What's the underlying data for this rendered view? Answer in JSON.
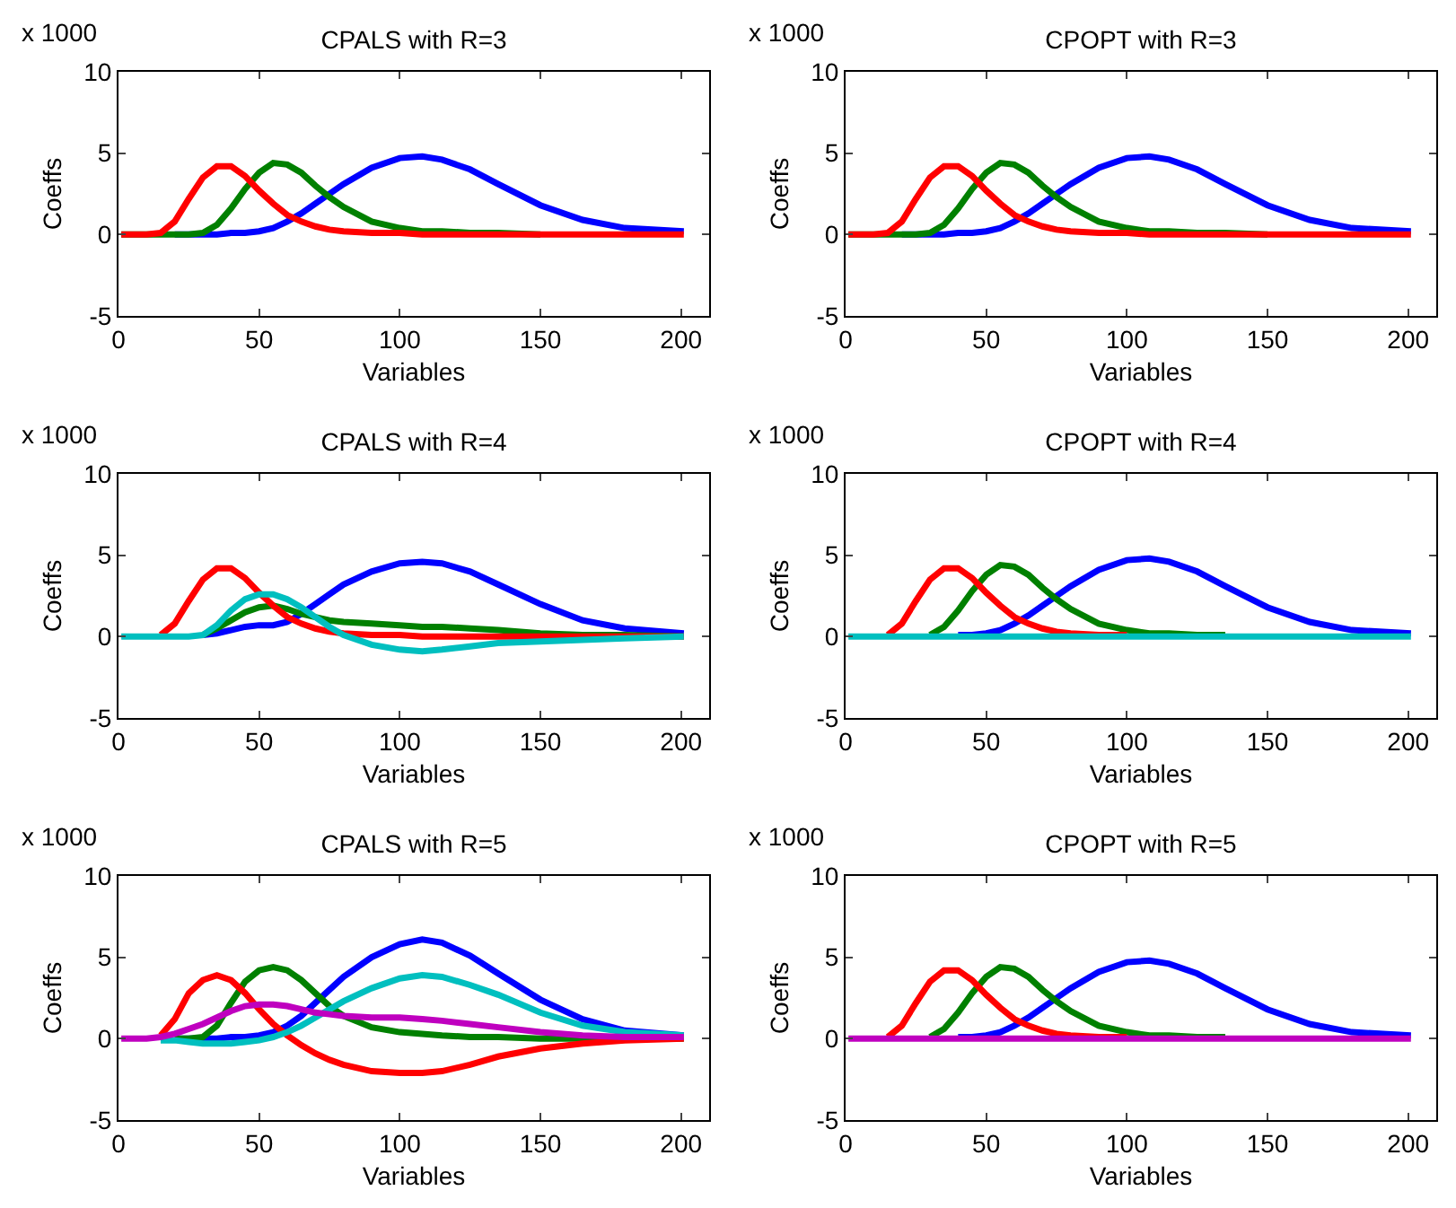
{
  "chart_data": [
    {
      "type": "line",
      "title": "CPALS with R=3",
      "xlabel": "Variables",
      "ylabel": "Coeffs",
      "annotations": [
        "x 1000"
      ],
      "x": [
        1,
        10,
        15,
        20,
        25,
        30,
        35,
        40,
        45,
        50,
        55,
        60,
        65,
        70,
        75,
        80,
        90,
        100,
        108,
        115,
        125,
        135,
        150,
        165,
        180,
        201
      ],
      "xlim": [
        0,
        210
      ],
      "xticks": [
        0,
        50,
        100,
        150,
        200
      ],
      "ylim": [
        -5,
        10
      ],
      "yticks": [
        -5,
        0,
        5,
        10
      ],
      "grid": false,
      "marker": "none",
      "line_style": "solid",
      "series": [
        {
          "color": "#0000ff",
          "values": [
            null,
            null,
            null,
            0,
            0,
            0,
            0,
            0.1,
            0.1,
            0.2,
            0.4,
            0.8,
            1.3,
            1.9,
            2.5,
            3.1,
            4.1,
            4.7,
            4.8,
            4.6,
            4.0,
            3.1,
            1.8,
            0.9,
            0.4,
            0.2
          ]
        },
        {
          "color": "#008000",
          "values": [
            0,
            0,
            0,
            0,
            0,
            0.1,
            0.6,
            1.6,
            2.8,
            3.8,
            4.4,
            4.3,
            3.8,
            3.0,
            2.3,
            1.7,
            0.8,
            0.4,
            0.2,
            0.2,
            0.1,
            0.1,
            0,
            null,
            null,
            null
          ]
        },
        {
          "color": "#ff0000",
          "values": [
            0,
            0,
            0.1,
            0.8,
            2.2,
            3.5,
            4.2,
            4.2,
            3.6,
            2.7,
            1.9,
            1.2,
            0.8,
            0.5,
            0.3,
            0.2,
            0.1,
            0.1,
            0,
            0,
            0,
            0,
            0,
            0,
            0,
            0
          ]
        }
      ]
    },
    {
      "type": "line",
      "title": "CPOPT with R=3",
      "xlabel": "Variables",
      "ylabel": "Coeffs",
      "annotations": [
        "x 1000"
      ],
      "x": [
        1,
        10,
        15,
        20,
        25,
        30,
        35,
        40,
        45,
        50,
        55,
        60,
        65,
        70,
        75,
        80,
        90,
        100,
        108,
        115,
        125,
        135,
        150,
        165,
        180,
        201
      ],
      "xlim": [
        0,
        210
      ],
      "xticks": [
        0,
        50,
        100,
        150,
        200
      ],
      "ylim": [
        -5,
        10
      ],
      "yticks": [
        -5,
        0,
        5,
        10
      ],
      "grid": false,
      "marker": "none",
      "line_style": "solid",
      "series": [
        {
          "color": "#0000ff",
          "values": [
            null,
            null,
            null,
            0,
            0,
            0,
            0,
            0.1,
            0.1,
            0.2,
            0.4,
            0.8,
            1.3,
            1.9,
            2.5,
            3.1,
            4.1,
            4.7,
            4.8,
            4.6,
            4.0,
            3.1,
            1.8,
            0.9,
            0.4,
            0.2
          ]
        },
        {
          "color": "#008000",
          "values": [
            0,
            0,
            0,
            0,
            0,
            0.1,
            0.6,
            1.6,
            2.8,
            3.8,
            4.4,
            4.3,
            3.8,
            3.0,
            2.3,
            1.7,
            0.8,
            0.4,
            0.2,
            0.2,
            0.1,
            0.1,
            0,
            null,
            null,
            null
          ]
        },
        {
          "color": "#ff0000",
          "values": [
            0,
            0,
            0.1,
            0.8,
            2.2,
            3.5,
            4.2,
            4.2,
            3.6,
            2.7,
            1.9,
            1.2,
            0.8,
            0.5,
            0.3,
            0.2,
            0.1,
            0.1,
            0,
            0,
            0,
            0,
            0,
            0,
            0,
            0
          ]
        }
      ]
    },
    {
      "type": "line",
      "title": "CPALS with R=4",
      "xlabel": "Variables",
      "ylabel": "Coeffs",
      "annotations": [
        "x 1000"
      ],
      "x": [
        1,
        10,
        15,
        20,
        25,
        30,
        35,
        40,
        45,
        50,
        55,
        60,
        65,
        70,
        75,
        80,
        90,
        100,
        108,
        115,
        125,
        135,
        150,
        165,
        180,
        201
      ],
      "xlim": [
        0,
        210
      ],
      "xticks": [
        0,
        50,
        100,
        150,
        200
      ],
      "ylim": [
        -5,
        10
      ],
      "yticks": [
        -5,
        0,
        5,
        10
      ],
      "grid": false,
      "marker": "none",
      "line_style": "solid",
      "series": [
        {
          "color": "#0000ff",
          "values": [
            null,
            null,
            null,
            null,
            null,
            0.1,
            0.2,
            0.4,
            0.6,
            0.7,
            0.7,
            0.9,
            1.4,
            2.0,
            2.6,
            3.2,
            4.0,
            4.5,
            4.6,
            4.5,
            4.0,
            3.2,
            2.0,
            1.0,
            0.5,
            0.2
          ]
        },
        {
          "color": "#008000",
          "values": [
            null,
            null,
            null,
            null,
            null,
            0.1,
            0.5,
            1.0,
            1.5,
            1.8,
            1.9,
            1.7,
            1.4,
            1.2,
            1.0,
            0.9,
            0.8,
            0.7,
            0.6,
            0.6,
            0.5,
            0.4,
            0.2,
            0.1,
            0.1,
            0
          ]
        },
        {
          "color": "#ff0000",
          "values": [
            null,
            null,
            0.1,
            0.8,
            2.2,
            3.5,
            4.2,
            4.2,
            3.6,
            2.7,
            1.9,
            1.2,
            0.8,
            0.5,
            0.3,
            0.2,
            0.1,
            0.1,
            0,
            0,
            0,
            0,
            0,
            0,
            0,
            0
          ]
        },
        {
          "color": "#00bfbf",
          "values": [
            0,
            0,
            0,
            0,
            0,
            0.1,
            0.7,
            1.6,
            2.3,
            2.6,
            2.6,
            2.3,
            1.8,
            1.2,
            0.6,
            0.1,
            -0.5,
            -0.8,
            -0.9,
            -0.8,
            -0.6,
            -0.4,
            -0.3,
            -0.2,
            -0.1,
            0
          ]
        }
      ]
    },
    {
      "type": "line",
      "title": "CPOPT with R=4",
      "xlabel": "Variables",
      "ylabel": "Coeffs",
      "annotations": [
        "x 1000"
      ],
      "x": [
        1,
        10,
        15,
        20,
        25,
        30,
        35,
        40,
        45,
        50,
        55,
        60,
        65,
        70,
        75,
        80,
        90,
        100,
        108,
        115,
        125,
        135,
        150,
        165,
        180,
        201
      ],
      "xlim": [
        0,
        210
      ],
      "xticks": [
        0,
        50,
        100,
        150,
        200
      ],
      "ylim": [
        -5,
        10
      ],
      "yticks": [
        -5,
        0,
        5,
        10
      ],
      "grid": false,
      "marker": "none",
      "line_style": "solid",
      "series": [
        {
          "color": "#0000ff",
          "values": [
            null,
            null,
            null,
            null,
            null,
            null,
            null,
            0.1,
            0.1,
            0.2,
            0.4,
            0.8,
            1.3,
            1.9,
            2.5,
            3.1,
            4.1,
            4.7,
            4.8,
            4.6,
            4.0,
            3.1,
            1.8,
            0.9,
            0.4,
            0.2
          ]
        },
        {
          "color": "#008000",
          "values": [
            null,
            null,
            null,
            null,
            null,
            0.1,
            0.6,
            1.6,
            2.8,
            3.8,
            4.4,
            4.3,
            3.8,
            3.0,
            2.3,
            1.7,
            0.8,
            0.4,
            0.2,
            0.2,
            0.1,
            0.1,
            null,
            null,
            null,
            null
          ]
        },
        {
          "color": "#ff0000",
          "values": [
            null,
            null,
            0.1,
            0.8,
            2.2,
            3.5,
            4.2,
            4.2,
            3.6,
            2.7,
            1.9,
            1.2,
            0.8,
            0.5,
            0.3,
            0.2,
            0.1,
            0.1,
            null,
            null,
            null,
            null,
            null,
            null,
            null,
            null
          ]
        },
        {
          "color": "#00bfbf",
          "values": [
            0,
            0,
            0,
            0,
            0,
            0,
            0,
            0,
            0,
            0,
            0,
            0,
            0,
            0,
            0,
            0,
            0,
            0,
            0,
            0,
            0,
            0,
            0,
            0,
            0,
            0
          ]
        }
      ]
    },
    {
      "type": "line",
      "title": "CPALS with R=5",
      "xlabel": "Variables",
      "ylabel": "Coeffs",
      "annotations": [
        "x 1000"
      ],
      "x": [
        1,
        10,
        15,
        20,
        25,
        30,
        35,
        40,
        45,
        50,
        55,
        60,
        65,
        70,
        75,
        80,
        90,
        100,
        108,
        115,
        125,
        135,
        150,
        165,
        180,
        201
      ],
      "xlim": [
        0,
        210
      ],
      "xticks": [
        0,
        50,
        100,
        150,
        200
      ],
      "ylim": [
        -5,
        10
      ],
      "yticks": [
        -5,
        0,
        5,
        10
      ],
      "grid": false,
      "marker": "none",
      "line_style": "solid",
      "series": [
        {
          "color": "#0000ff",
          "values": [
            null,
            null,
            null,
            0,
            0,
            0,
            0,
            0.1,
            0.1,
            0.2,
            0.4,
            0.8,
            1.4,
            2.2,
            3.0,
            3.8,
            5.0,
            5.8,
            6.1,
            5.9,
            5.1,
            4.0,
            2.4,
            1.2,
            0.5,
            0.2
          ]
        },
        {
          "color": "#008000",
          "values": [
            null,
            null,
            null,
            0,
            0,
            0.1,
            0.8,
            2.2,
            3.5,
            4.2,
            4.4,
            4.2,
            3.6,
            2.8,
            2.0,
            1.4,
            0.7,
            0.4,
            0.3,
            0.2,
            0.1,
            0.1,
            0,
            0,
            0,
            0
          ]
        },
        {
          "color": "#ff0000",
          "values": [
            null,
            null,
            0.2,
            1.2,
            2.8,
            3.6,
            3.9,
            3.6,
            2.8,
            1.8,
            0.9,
            0.2,
            -0.4,
            -0.9,
            -1.3,
            -1.6,
            -2.0,
            -2.1,
            -2.1,
            -2.0,
            -1.6,
            -1.1,
            -0.6,
            -0.3,
            -0.1,
            0
          ]
        },
        {
          "color": "#00bfbf",
          "values": [
            null,
            null,
            -0.1,
            -0.1,
            -0.2,
            -0.3,
            -0.3,
            -0.3,
            -0.2,
            -0.1,
            0.1,
            0.4,
            0.8,
            1.3,
            1.8,
            2.3,
            3.1,
            3.7,
            3.9,
            3.8,
            3.3,
            2.7,
            1.6,
            0.8,
            0.4,
            0.2
          ]
        },
        {
          "color": "#bf00bf",
          "values": [
            0,
            0,
            0.1,
            0.3,
            0.6,
            0.9,
            1.3,
            1.7,
            2.0,
            2.1,
            2.1,
            2.0,
            1.8,
            1.6,
            1.5,
            1.4,
            1.3,
            1.3,
            1.2,
            1.1,
            0.9,
            0.7,
            0.4,
            0.2,
            0.1,
            0.1
          ]
        }
      ]
    },
    {
      "type": "line",
      "title": "CPOPT with R=5",
      "xlabel": "Variables",
      "ylabel": "Coeffs",
      "annotations": [
        "x 1000"
      ],
      "x": [
        1,
        10,
        15,
        20,
        25,
        30,
        35,
        40,
        45,
        50,
        55,
        60,
        65,
        70,
        75,
        80,
        90,
        100,
        108,
        115,
        125,
        135,
        150,
        165,
        180,
        201
      ],
      "xlim": [
        0,
        210
      ],
      "xticks": [
        0,
        50,
        100,
        150,
        200
      ],
      "ylim": [
        -5,
        10
      ],
      "yticks": [
        -5,
        0,
        5,
        10
      ],
      "grid": false,
      "marker": "none",
      "line_style": "solid",
      "series": [
        {
          "color": "#0000ff",
          "values": [
            null,
            null,
            null,
            null,
            null,
            null,
            null,
            0.1,
            0.1,
            0.2,
            0.4,
            0.8,
            1.3,
            1.9,
            2.5,
            3.1,
            4.1,
            4.7,
            4.8,
            4.6,
            4.0,
            3.1,
            1.8,
            0.9,
            0.4,
            0.2
          ]
        },
        {
          "color": "#008000",
          "values": [
            null,
            null,
            null,
            null,
            null,
            0.1,
            0.6,
            1.6,
            2.8,
            3.8,
            4.4,
            4.3,
            3.8,
            3.0,
            2.3,
            1.7,
            0.8,
            0.4,
            0.2,
            0.2,
            0.1,
            0.1,
            null,
            null,
            null,
            null
          ]
        },
        {
          "color": "#ff0000",
          "values": [
            null,
            null,
            0.1,
            0.8,
            2.2,
            3.5,
            4.2,
            4.2,
            3.6,
            2.7,
            1.9,
            1.2,
            0.8,
            0.5,
            0.3,
            0.2,
            0.1,
            0.1,
            null,
            null,
            null,
            null,
            null,
            null,
            null,
            null
          ]
        },
        {
          "color": "#bf00bf",
          "values": [
            0,
            0,
            0,
            0,
            0,
            0,
            0,
            0,
            0,
            0,
            0,
            0,
            0,
            0,
            0,
            0,
            0,
            0,
            0,
            0,
            0,
            0,
            0,
            0,
            0,
            0
          ]
        }
      ]
    }
  ]
}
